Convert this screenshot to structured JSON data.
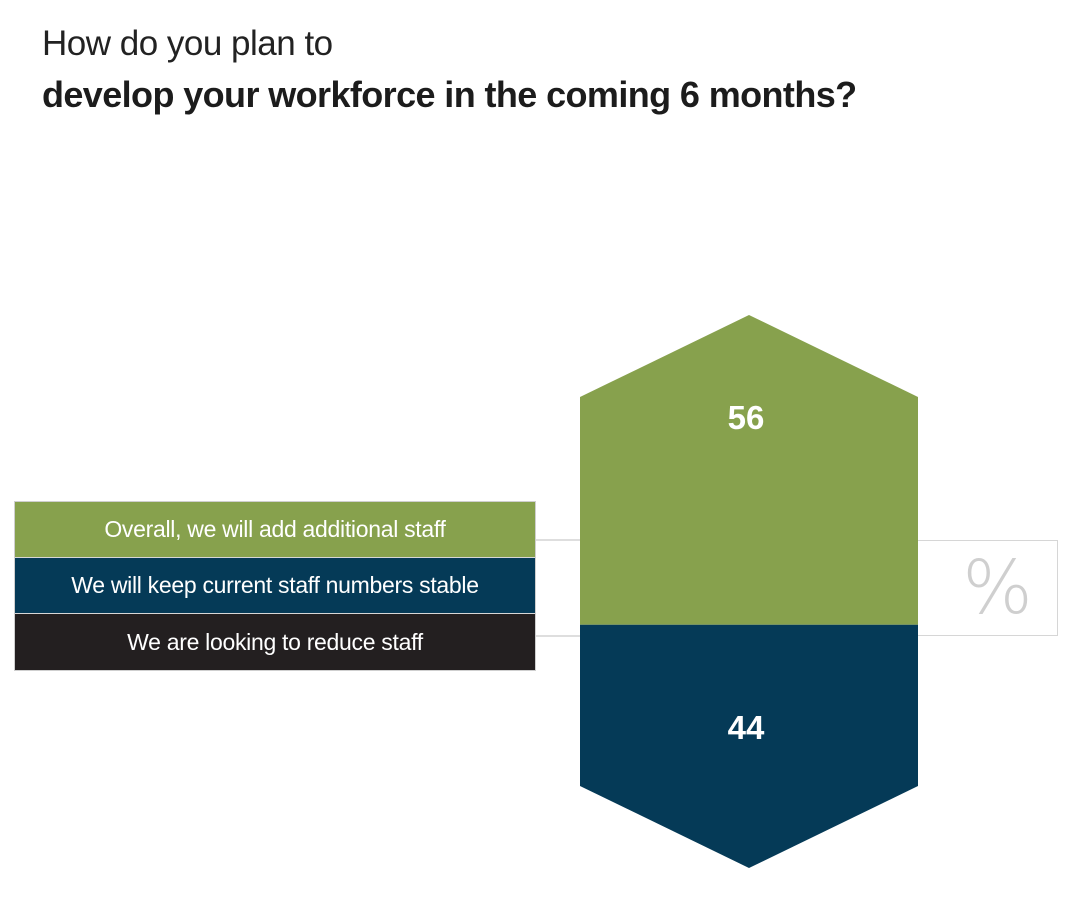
{
  "title": {
    "line1": "How do you plan to",
    "line2": "develop your workforce in the coming 6 months?"
  },
  "chart_data": {
    "type": "bar",
    "unit": "%",
    "segments": [
      {
        "name": "Overall, we will add additional staff",
        "value": 56,
        "color": "#87a14d"
      },
      {
        "name": "We will keep current staff numbers stable",
        "value": 44,
        "color": "#053a57"
      },
      {
        "name": "We are looking to reduce staff",
        "value": 0,
        "color": "#231f20"
      }
    ]
  }
}
